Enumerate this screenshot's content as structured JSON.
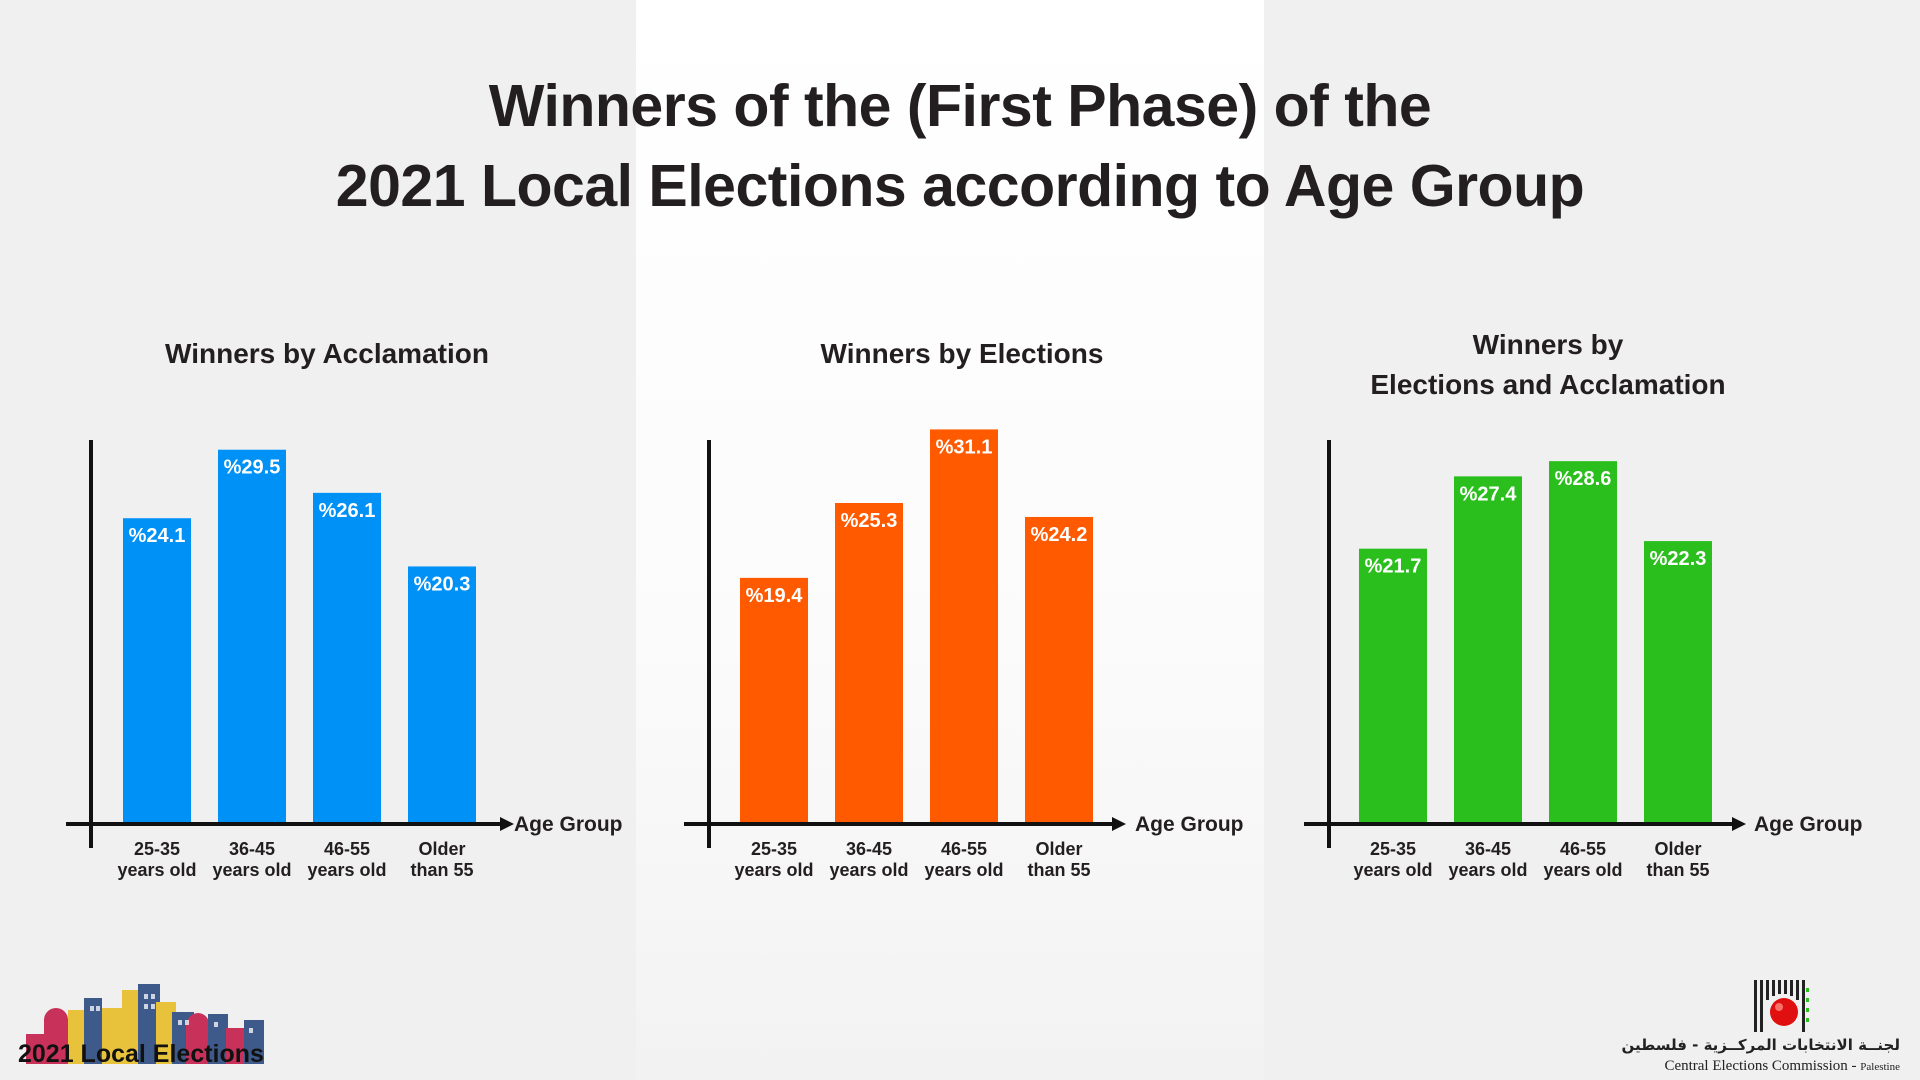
{
  "title": {
    "line1": "Winners of the (First Phase) of the",
    "line2": "2021 Local Elections according to Age Group"
  },
  "colors": {
    "acclamation": "#0091f7",
    "elections": "#ff5a00",
    "combined": "#2bbf1e",
    "axis": "#111111"
  },
  "chart_data": [
    {
      "type": "bar",
      "title_lines": [
        "Winners by Acclamation"
      ],
      "categories": [
        [
          "25-35",
          "years old"
        ],
        [
          "36-45",
          "years old"
        ],
        [
          "46-55",
          "years old"
        ],
        [
          "Older",
          "than 55"
        ]
      ],
      "values": [
        24.1,
        29.5,
        26.1,
        20.3
      ],
      "value_labels": [
        "%24.1",
        "%29.5",
        "%26.1",
        "%20.3"
      ],
      "xlabel": "Age Group",
      "ylim": [
        0,
        32
      ],
      "grid": false,
      "color": "#0091f7"
    },
    {
      "type": "bar",
      "title_lines": [
        "Winners by Elections"
      ],
      "categories": [
        [
          "25-35",
          "years old"
        ],
        [
          "36-45",
          "years old"
        ],
        [
          "46-55",
          "years old"
        ],
        [
          "Older",
          "than 55"
        ]
      ],
      "values": [
        19.4,
        25.3,
        31.1,
        24.2
      ],
      "value_labels": [
        "%19.4",
        "%25.3",
        "%31.1",
        "%24.2"
      ],
      "xlabel": "Age Group",
      "ylim": [
        0,
        32
      ],
      "grid": false,
      "color": "#ff5a00"
    },
    {
      "type": "bar",
      "title_lines": [
        "Winners by",
        "Elections and Acclamation"
      ],
      "categories": [
        [
          "25-35",
          "years old"
        ],
        [
          "36-45",
          "years old"
        ],
        [
          "46-55",
          "years old"
        ],
        [
          "Older",
          "than 55"
        ]
      ],
      "values": [
        21.7,
        27.4,
        28.6,
        22.3
      ],
      "value_labels": [
        "%21.7",
        "%27.4",
        "%28.6",
        "%22.3"
      ],
      "xlabel": "Age Group",
      "ylim": [
        0,
        32
      ],
      "grid": false,
      "color": "#2bbf1e"
    }
  ],
  "logo_left": {
    "text": "2021 Local Elections"
  },
  "logo_right": {
    "arabic": "لجنــة الانتخابات المركــزية - فلسطين",
    "english": "Central Elections Commission -",
    "english_suffix": "Palestine"
  }
}
